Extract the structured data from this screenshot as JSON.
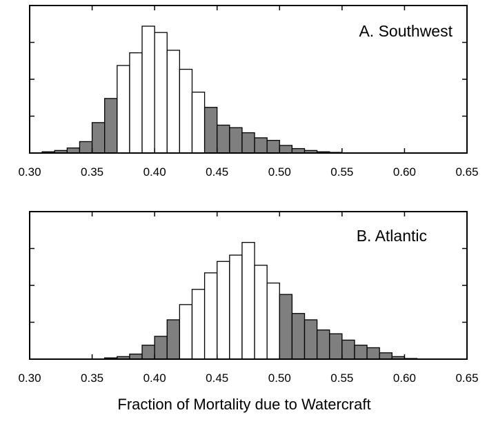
{
  "xlabel": "Fraction of Mortality due to Watercraft",
  "chart_data": [
    {
      "type": "bar",
      "title": "A.  Southwest",
      "xlabel": "",
      "ylabel": "",
      "xlim": [
        0.3,
        0.65
      ],
      "ylim": [
        0,
        1.0
      ],
      "x_ticks": [
        "0.30",
        "0.35",
        "0.40",
        "0.45",
        "0.50",
        "0.55",
        "0.60",
        "0.65"
      ],
      "y_tick_labels_shown": false,
      "bin_width": 0.01,
      "bin_starts": [
        0.31,
        0.32,
        0.33,
        0.34,
        0.35,
        0.36,
        0.37,
        0.38,
        0.39,
        0.4,
        0.41,
        0.42,
        0.43,
        0.44,
        0.45,
        0.46,
        0.47,
        0.48,
        0.49,
        0.5,
        0.51,
        0.52,
        0.53,
        0.54
      ],
      "values": [
        0.01,
        0.02,
        0.04,
        0.09,
        0.24,
        0.43,
        0.69,
        0.79,
        1.0,
        0.95,
        0.81,
        0.66,
        0.48,
        0.36,
        0.22,
        0.2,
        0.16,
        0.12,
        0.1,
        0.06,
        0.035,
        0.02,
        0.01,
        0.005
      ],
      "shaded": [
        true,
        true,
        true,
        true,
        true,
        true,
        false,
        false,
        false,
        false,
        false,
        false,
        false,
        true,
        true,
        true,
        true,
        true,
        true,
        true,
        true,
        true,
        true,
        true
      ],
      "fill_shaded": "#7f7f7f",
      "fill_unshaded": "#ffffff"
    },
    {
      "type": "bar",
      "title": "B.  Atlantic",
      "xlabel": "",
      "ylabel": "",
      "xlim": [
        0.3,
        0.65
      ],
      "ylim": [
        0,
        1.0
      ],
      "x_ticks": [
        "0.30",
        "0.35",
        "0.40",
        "0.45",
        "0.50",
        "0.55",
        "0.60",
        "0.65"
      ],
      "y_tick_labels_shown": false,
      "bin_width": 0.01,
      "bin_starts": [
        0.36,
        0.37,
        0.38,
        0.39,
        0.4,
        0.41,
        0.42,
        0.43,
        0.44,
        0.45,
        0.46,
        0.47,
        0.48,
        0.49,
        0.5,
        0.51,
        0.52,
        0.53,
        0.54,
        0.55,
        0.56,
        0.57,
        0.58,
        0.59,
        0.6
      ],
      "values": [
        0.01,
        0.02,
        0.04,
        0.11,
        0.18,
        0.31,
        0.43,
        0.55,
        0.68,
        0.77,
        0.82,
        0.92,
        0.74,
        0.6,
        0.51,
        0.36,
        0.31,
        0.23,
        0.2,
        0.15,
        0.11,
        0.09,
        0.05,
        0.02,
        0.005
      ],
      "shaded": [
        true,
        true,
        true,
        true,
        true,
        true,
        false,
        false,
        false,
        false,
        false,
        false,
        false,
        false,
        true,
        true,
        true,
        true,
        true,
        true,
        true,
        true,
        true,
        true,
        true
      ],
      "fill_shaded": "#7f7f7f",
      "fill_unshaded": "#ffffff"
    }
  ]
}
